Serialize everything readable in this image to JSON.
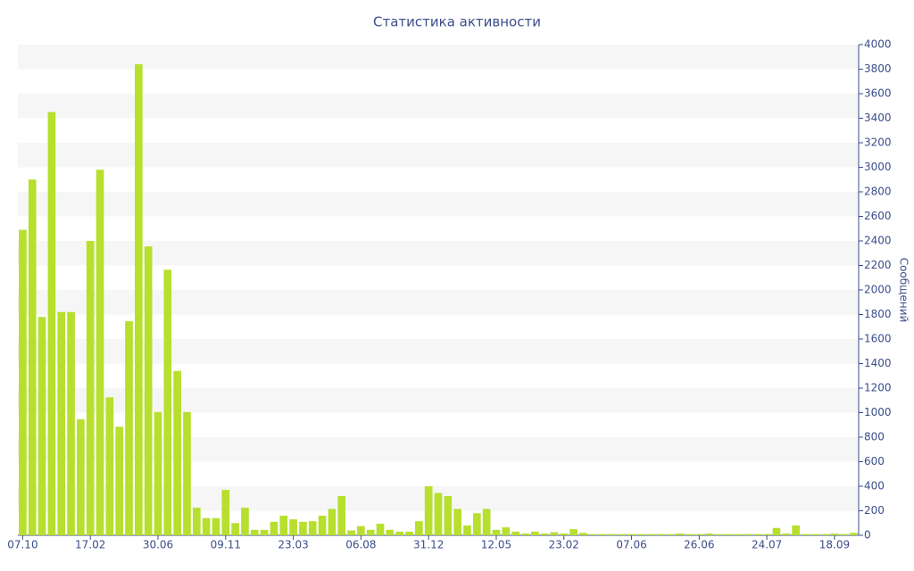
{
  "chart_data": {
    "type": "bar",
    "title": "Статистика активности",
    "y_axis_label": "Сообщений",
    "categories": [
      "07.10",
      null,
      null,
      null,
      null,
      null,
      null,
      "17.02",
      null,
      null,
      null,
      null,
      null,
      null,
      "30.06",
      null,
      null,
      null,
      null,
      null,
      null,
      "09.11",
      null,
      null,
      null,
      null,
      null,
      null,
      "23.03",
      null,
      null,
      null,
      null,
      null,
      null,
      "06.08",
      null,
      null,
      null,
      null,
      null,
      null,
      "31.12",
      null,
      null,
      null,
      null,
      null,
      null,
      "12.05",
      null,
      null,
      null,
      null,
      null,
      null,
      "23.02",
      null,
      null,
      null,
      null,
      null,
      null,
      "07.06",
      null,
      null,
      null,
      null,
      null,
      null,
      "26.06",
      null,
      null,
      null,
      null,
      null,
      null,
      "24.07",
      null,
      null,
      null,
      null,
      null,
      null,
      "18.09",
      null,
      null
    ],
    "values": [
      2490,
      2900,
      1780,
      3450,
      1820,
      1820,
      945,
      2400,
      2980,
      1125,
      885,
      1745,
      3840,
      2355,
      1005,
      2165,
      1340,
      1005,
      225,
      140,
      140,
      370,
      100,
      225,
      45,
      45,
      110,
      160,
      130,
      110,
      115,
      160,
      215,
      320,
      40,
      75,
      45,
      95,
      45,
      30,
      30,
      115,
      400,
      345,
      320,
      215,
      80,
      180,
      215,
      45,
      65,
      30,
      15,
      30,
      15,
      25,
      15,
      50,
      20,
      10,
      10,
      10,
      10,
      10,
      10,
      10,
      10,
      10,
      15,
      10,
      10,
      15,
      10,
      10,
      10,
      10,
      10,
      10,
      60,
      15,
      80,
      10,
      10,
      10,
      15,
      10,
      20
    ],
    "color": "#b7df2e",
    "ylim": [
      0,
      4000
    ],
    "yticks": [
      0,
      200,
      400,
      600,
      800,
      1000,
      1200,
      1400,
      1600,
      1800,
      2000,
      2200,
      2400,
      2600,
      2800,
      3000,
      3200,
      3400,
      3600,
      3800,
      4000
    ],
    "grid": true,
    "y_axis_side": "right"
  }
}
